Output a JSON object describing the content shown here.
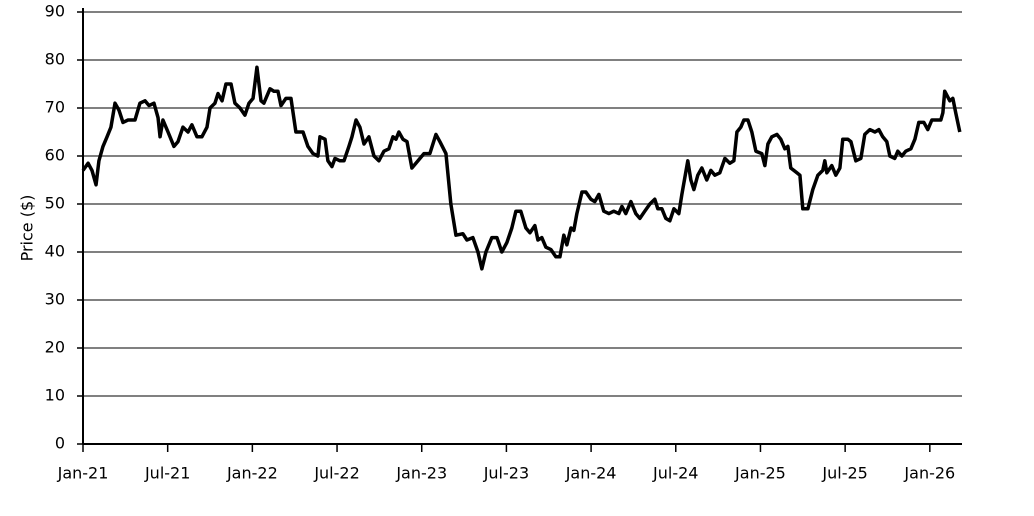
{
  "chart_data": {
    "type": "line",
    "y_label": "Price ($)",
    "x": [
      2021.0,
      2021.03,
      2021.053,
      2021.077,
      2021.094,
      2021.118,
      2021.142,
      2021.165,
      2021.189,
      2021.213,
      2021.236,
      2021.266,
      2021.307,
      2021.336,
      2021.366,
      2021.39,
      2021.419,
      2021.443,
      2021.455,
      2021.472,
      2021.502,
      2021.537,
      2021.561,
      2021.59,
      2021.62,
      2021.643,
      2021.673,
      2021.702,
      2021.732,
      2021.75,
      2021.779,
      2021.797,
      2021.821,
      2021.844,
      2021.874,
      2021.897,
      2021.927,
      2021.956,
      2021.98,
      2022.004,
      2022.027,
      2022.051,
      2022.068,
      2022.104,
      2022.127,
      2022.151,
      2022.169,
      2022.198,
      2022.228,
      2022.257,
      2022.299,
      2022.328,
      2022.358,
      2022.387,
      2022.399,
      2022.429,
      2022.446,
      2022.47,
      2022.488,
      2022.517,
      2022.541,
      2022.57,
      2022.588,
      2022.612,
      2022.635,
      2022.659,
      2022.688,
      2022.718,
      2022.747,
      2022.777,
      2022.806,
      2022.83,
      2022.848,
      2022.865,
      2022.889,
      2022.913,
      2022.942,
      2022.978,
      2023.013,
      2023.048,
      2023.084,
      2023.107,
      2023.143,
      2023.172,
      2023.202,
      2023.243,
      2023.267,
      2023.302,
      2023.332,
      2023.355,
      2023.379,
      2023.414,
      2023.444,
      2023.473,
      2023.503,
      2023.532,
      2023.556,
      2023.585,
      2023.615,
      2023.639,
      2023.668,
      2023.686,
      2023.709,
      2023.733,
      2023.763,
      2023.792,
      2023.816,
      2023.839,
      2023.857,
      2023.881,
      2023.898,
      2023.916,
      2023.946,
      2023.969,
      2023.999,
      2024.022,
      2024.046,
      2024.075,
      2024.105,
      2024.134,
      2024.164,
      2024.182,
      2024.205,
      2024.235,
      2024.264,
      2024.288,
      2024.317,
      2024.347,
      2024.376,
      2024.394,
      2024.418,
      2024.441,
      2024.465,
      2024.489,
      2024.518,
      2024.536,
      2024.571,
      2024.589,
      2024.607,
      2024.63,
      2024.654,
      2024.683,
      2024.707,
      2024.731,
      2024.76,
      2024.79,
      2024.819,
      2024.843,
      2024.861,
      2024.884,
      2024.902,
      2024.926,
      2024.949,
      2024.973,
      2025.008,
      2025.026,
      2025.044,
      2025.067,
      2025.097,
      2025.12,
      2025.144,
      2025.162,
      2025.179,
      2025.215,
      2025.233,
      2025.25,
      2025.28,
      2025.309,
      2025.339,
      2025.368,
      2025.38,
      2025.392,
      2025.421,
      2025.445,
      2025.469,
      2025.486,
      2025.516,
      2025.534,
      2025.563,
      2025.593,
      2025.616,
      2025.646,
      2025.676,
      2025.699,
      2025.722,
      2025.746,
      2025.764,
      2025.793,
      2025.811,
      2025.835,
      2025.858,
      2025.888,
      2025.912,
      2025.935,
      2025.965,
      2025.988,
      2026.012,
      2026.035,
      2026.065,
      2026.077,
      2026.088,
      2026.118,
      2026.136,
      2026.153,
      2026.177
    ],
    "series": [
      {
        "color": "#000000",
        "values": [
          57,
          58.5,
          57,
          54,
          59,
          62,
          64,
          66,
          71,
          69.5,
          67,
          67.5,
          67.5,
          71,
          71.5,
          70.5,
          71,
          68,
          64,
          67.5,
          65,
          62,
          63,
          66,
          65,
          66.5,
          64,
          64,
          66,
          70,
          71,
          73,
          71.5,
          75,
          75,
          71,
          70,
          68.5,
          71,
          72,
          78.5,
          71.5,
          71,
          74,
          73.5,
          73.5,
          70.5,
          72,
          72,
          65,
          65,
          62,
          60.5,
          60,
          64,
          63.5,
          59,
          57.8,
          59.5,
          59,
          59,
          62,
          64,
          67.5,
          66,
          62.5,
          64,
          60,
          59,
          61,
          61.5,
          64,
          63.5,
          65,
          63.5,
          63,
          57.5,
          59,
          60.5,
          60.5,
          64.5,
          63,
          60.5,
          50,
          43.5,
          43.8,
          42.5,
          43,
          40,
          36.5,
          40,
          43,
          43,
          40,
          42,
          45,
          48.5,
          48.5,
          45,
          44,
          45.5,
          42.5,
          43,
          41,
          40.5,
          39,
          39,
          43.5,
          41.5,
          45,
          44.5,
          48,
          52.5,
          52.5,
          51,
          50.5,
          52,
          48.5,
          48,
          48.5,
          48,
          49.5,
          48,
          50.5,
          48,
          47,
          48.5,
          50,
          51,
          49,
          49,
          47,
          46.5,
          49,
          48,
          52,
          59,
          55,
          53,
          56,
          57.5,
          55,
          57,
          56,
          56.5,
          59.5,
          58.5,
          59,
          65,
          66,
          67.5,
          67.5,
          65,
          61,
          60.5,
          58,
          62.5,
          64,
          64.5,
          63.5,
          61.5,
          62,
          57.5,
          56.5,
          56,
          49,
          49,
          53,
          56,
          57,
          59,
          56.5,
          58,
          56,
          57.5,
          63.5,
          63.5,
          63,
          59,
          59.5,
          64.5,
          65.5,
          65,
          65.5,
          64,
          63,
          60,
          59.5,
          61,
          60,
          61,
          61.5,
          63.5,
          67,
          67,
          65.5,
          67.5,
          67.5,
          67.5,
          69,
          73.5,
          71.5,
          72,
          69,
          65
        ]
      }
    ],
    "xlim": [
      2021,
      2026.19
    ],
    "xticks": [
      {
        "value": 2021,
        "label": "Jan-21"
      },
      {
        "value": 2021.5,
        "label": "Jul-21"
      },
      {
        "value": 2022,
        "label": "Jan-22"
      },
      {
        "value": 2022.5,
        "label": "Jul-22"
      },
      {
        "value": 2023,
        "label": "Jan-23"
      },
      {
        "value": 2023.5,
        "label": "Jul-23"
      },
      {
        "value": 2024,
        "label": "Jan-24"
      },
      {
        "value": 2024.5,
        "label": "Jul-24"
      },
      {
        "value": 2025,
        "label": "Jan-25"
      },
      {
        "value": 2025.5,
        "label": "Jul-25"
      },
      {
        "value": 2026,
        "label": "Jan-26"
      }
    ],
    "ylim": [
      0,
      90
    ],
    "yticks": [
      0,
      10,
      20,
      30,
      40,
      50,
      60,
      70,
      80,
      90
    ],
    "grid": true
  }
}
